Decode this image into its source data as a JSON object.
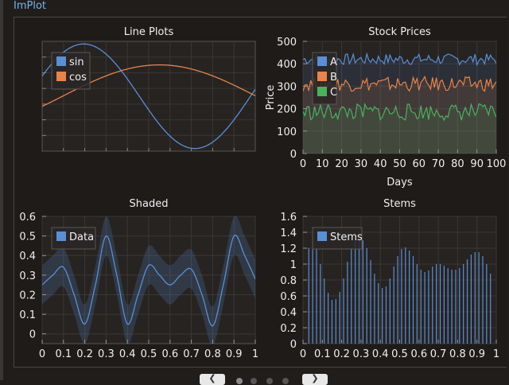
{
  "app": {
    "title": "ImPlot"
  },
  "colors": {
    "bg": "#211d1b",
    "plot_bg": "#262321",
    "grid": "#3a3735",
    "axis_text": "#f0f0f0",
    "blue": "#5a8fd6",
    "orange": "#e8844a",
    "green": "#49b35c"
  },
  "chart_data": [
    {
      "type": "line",
      "title": "Line Plots",
      "xlabel": "",
      "ylabel": "",
      "tick_labels": false,
      "xlim": [
        0,
        1
      ],
      "ylim": [
        -1.05,
        1.05
      ],
      "legend": "top-left",
      "series": [
        {
          "name": "sin",
          "color": "#5a8fd6",
          "function": "sin",
          "description_points": [
            [
              0,
              0
            ],
            [
              0.3,
              1.0
            ],
            [
              0.82,
              -1.0
            ],
            [
              1.0,
              -0.2
            ]
          ]
        },
        {
          "name": "cos",
          "color": "#e8844a",
          "function": "cos",
          "description_points": [
            [
              0,
              -0.1
            ],
            [
              0.55,
              0.6
            ],
            [
              1.0,
              -0.3
            ]
          ]
        }
      ]
    },
    {
      "type": "line",
      "title": "Stock Prices",
      "xlabel": "Days",
      "ylabel": "Price",
      "xlim": [
        0,
        100
      ],
      "ylim": [
        0,
        500
      ],
      "xticks": [
        "0",
        "10",
        "20",
        "30",
        "40",
        "50",
        "60",
        "70",
        "80",
        "90",
        "100"
      ],
      "yticks": [
        "0",
        "100",
        "200",
        "300",
        "400",
        "500"
      ],
      "legend": "top-left",
      "series": [
        {
          "name": "A",
          "color": "#5a8fd6",
          "mean": 420,
          "range": [
            395,
            445
          ]
        },
        {
          "name": "B",
          "color": "#e8844a",
          "mean": 310,
          "range": [
            280,
            345
          ]
        },
        {
          "name": "C",
          "color": "#49b35c",
          "mean": 185,
          "range": [
            150,
            225
          ]
        }
      ],
      "shaded_to_zero": true
    },
    {
      "type": "area",
      "title": "Shaded",
      "xlabel": "",
      "ylabel": "",
      "xlim": [
        0,
        1
      ],
      "ylim": [
        -0.05,
        0.6
      ],
      "xticks": [
        "0",
        "0.1",
        "0.2",
        "0.3",
        "0.4",
        "0.5",
        "0.6",
        "0.7",
        "0.8",
        "0.9",
        "1"
      ],
      "yticks": [
        "0",
        "0.1",
        "0.2",
        "0.3",
        "0.4",
        "0.5",
        "0.6"
      ],
      "legend": "top-left",
      "series": [
        {
          "name": "Data",
          "color": "#5a8fd6",
          "x": [
            0,
            0.05,
            0.1,
            0.15,
            0.2,
            0.25,
            0.3,
            0.35,
            0.4,
            0.45,
            0.5,
            0.55,
            0.6,
            0.65,
            0.7,
            0.75,
            0.8,
            0.85,
            0.9,
            0.95,
            1.0
          ],
          "y": [
            0.25,
            0.3,
            0.34,
            0.2,
            0.05,
            0.25,
            0.5,
            0.3,
            0.05,
            0.2,
            0.35,
            0.3,
            0.25,
            0.3,
            0.33,
            0.2,
            0.04,
            0.25,
            0.5,
            0.4,
            0.28
          ]
        }
      ]
    },
    {
      "type": "bar",
      "title": "Stems",
      "xlabel": "",
      "ylabel": "",
      "xlim": [
        0,
        1
      ],
      "ylim": [
        0,
        1.6
      ],
      "xticks": [
        "0",
        "0.1",
        "0.2",
        "0.3",
        "0.4",
        "0.5",
        "0.6",
        "0.7",
        "0.8",
        "0.9",
        "1"
      ],
      "yticks": [
        "0",
        "0.2",
        "0.4",
        "0.6",
        "0.8",
        "1",
        "1.2",
        "1.4",
        "1.6"
      ],
      "legend": "top-left",
      "series": [
        {
          "name": "Stems",
          "color": "#5a8fd6",
          "x": [
            0.03,
            0.05,
            0.07,
            0.09,
            0.11,
            0.13,
            0.15,
            0.17,
            0.19,
            0.21,
            0.23,
            0.25,
            0.27,
            0.29,
            0.31,
            0.33,
            0.35,
            0.37,
            0.39,
            0.41,
            0.43,
            0.45,
            0.47,
            0.49,
            0.51,
            0.53,
            0.55,
            0.57,
            0.59,
            0.61,
            0.63,
            0.65,
            0.67,
            0.69,
            0.71,
            0.73,
            0.75,
            0.77,
            0.79,
            0.81,
            0.83,
            0.85,
            0.87,
            0.89,
            0.91,
            0.93,
            0.95,
            0.97
          ],
          "y": [
            1.2,
            1.35,
            1.2,
            1.0,
            0.82,
            0.64,
            0.55,
            0.56,
            0.65,
            0.82,
            1.03,
            1.2,
            1.3,
            1.32,
            1.3,
            1.2,
            1.05,
            0.88,
            0.76,
            0.7,
            0.72,
            0.82,
            0.97,
            1.1,
            1.19,
            1.21,
            1.17,
            1.1,
            1.0,
            0.93,
            0.9,
            0.92,
            0.97,
            1.0,
            1.0,
            0.98,
            0.95,
            0.93,
            0.93,
            0.95,
            1.0,
            1.06,
            1.12,
            1.15,
            1.15,
            1.1,
            1.0,
            0.88
          ]
        }
      ]
    }
  ],
  "footer": {
    "prev_icon": "chevron-left-icon",
    "next_icon": "chevron-right-icon",
    "page_dots": 4,
    "active_dot": 0
  }
}
